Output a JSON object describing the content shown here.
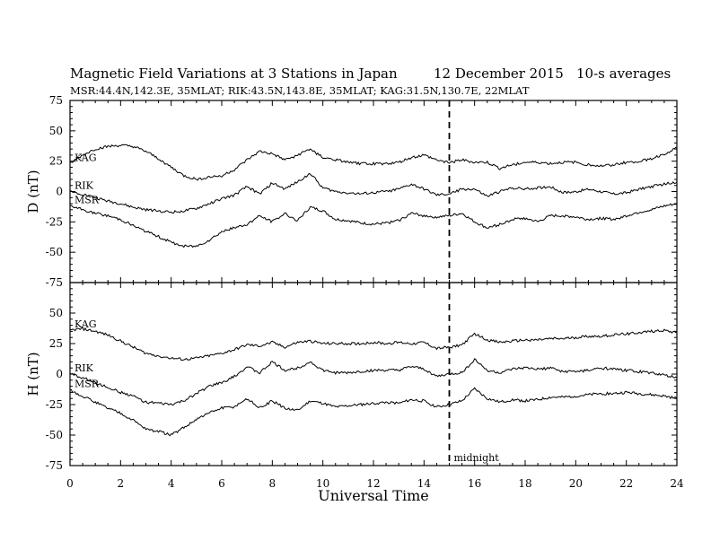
{
  "title": "Magnetic Field Variations at 3 Stations in Japan",
  "date": "12 December 2015",
  "averaging": "10-s averages",
  "stations_line": "MSR:44.4N,142.3E, 35MLAT;  RIK:43.5N,143.8E, 35MLAT;  KAG:31.5N,130.7E, 22MLAT",
  "chart_data": [
    {
      "type": "line",
      "ylabel": "D (nT)",
      "xlabel": "Universal Time",
      "xlim": [
        0,
        24
      ],
      "ylim": [
        -75,
        75
      ],
      "xticks": [
        0,
        2,
        4,
        6,
        8,
        10,
        12,
        14,
        16,
        18,
        20,
        22,
        24
      ],
      "yticks": [
        -75,
        -50,
        -25,
        0,
        25,
        50,
        75
      ],
      "x": [
        0,
        0.5,
        1,
        1.5,
        2,
        2.5,
        3,
        3.5,
        4,
        4.5,
        5,
        5.5,
        6,
        6.5,
        7,
        7.5,
        8,
        8.5,
        9,
        9.5,
        10,
        10.5,
        11,
        11.5,
        12,
        12.5,
        13,
        13.5,
        14,
        14.5,
        15,
        15.5,
        16,
        16.5,
        17,
        17.5,
        18,
        18.5,
        19,
        19.5,
        20,
        20.5,
        21,
        21.5,
        22,
        22.5,
        23,
        23.5,
        24
      ],
      "series": [
        {
          "name": "KAG",
          "values": [
            23,
            30,
            35,
            37,
            38,
            37,
            33,
            27,
            20,
            13,
            10,
            12,
            13,
            18,
            26,
            33,
            31,
            26,
            30,
            35,
            28,
            26,
            24,
            23,
            23,
            23,
            24,
            28,
            30,
            26,
            24,
            26,
            24,
            24,
            19,
            22,
            24,
            24,
            23,
            24,
            24,
            22,
            21,
            22,
            24,
            25,
            27,
            31,
            36
          ]
        },
        {
          "name": "RIK",
          "values": [
            0,
            -2,
            -5,
            -8,
            -10,
            -13,
            -15,
            -16,
            -17,
            -16,
            -14,
            -10,
            -6,
            -3,
            4,
            -2,
            7,
            2,
            8,
            15,
            3,
            0,
            -1,
            -2,
            -1,
            0,
            2,
            6,
            2,
            -3,
            -2,
            2,
            2,
            -4,
            0,
            3,
            2,
            3,
            4,
            -1,
            0,
            2,
            0,
            -2,
            -1,
            2,
            4,
            6,
            8
          ]
        },
        {
          "name": "MSR",
          "values": [
            -12,
            -15,
            -18,
            -20,
            -23,
            -28,
            -33,
            -37,
            -42,
            -45,
            -45,
            -40,
            -33,
            -30,
            -27,
            -20,
            -25,
            -18,
            -24,
            -13,
            -16,
            -23,
            -24,
            -26,
            -27,
            -26,
            -24,
            -18,
            -20,
            -21,
            -20,
            -18,
            -25,
            -30,
            -27,
            -23,
            -22,
            -25,
            -20,
            -20,
            -21,
            -23,
            -22,
            -23,
            -20,
            -17,
            -15,
            -12,
            -10
          ]
        }
      ]
    },
    {
      "type": "line",
      "ylabel": "H (nT)",
      "xlabel": "Universal Time",
      "xlim": [
        0,
        24
      ],
      "ylim": [
        -75,
        75
      ],
      "xticks": [
        0,
        2,
        4,
        6,
        8,
        10,
        12,
        14,
        16,
        18,
        20,
        22,
        24
      ],
      "yticks": [
        -75,
        -50,
        -25,
        0,
        25,
        50,
        75
      ],
      "x": [
        0,
        0.5,
        1,
        1.5,
        2,
        2.5,
        3,
        3.5,
        4,
        4.5,
        5,
        5.5,
        6,
        6.5,
        7,
        7.5,
        8,
        8.5,
        9,
        9.5,
        10,
        10.5,
        11,
        11.5,
        12,
        12.5,
        13,
        13.5,
        14,
        14.5,
        15,
        15.5,
        16,
        16.5,
        17,
        17.5,
        18,
        18.5,
        19,
        19.5,
        20,
        20.5,
        21,
        21.5,
        22,
        22.5,
        23,
        23.5,
        24
      ],
      "series": [
        {
          "name": "KAG",
          "values": [
            36,
            37,
            35,
            32,
            27,
            22,
            17,
            15,
            13,
            12,
            13,
            15,
            17,
            20,
            24,
            23,
            26,
            22,
            26,
            27,
            25,
            25,
            25,
            25,
            26,
            25,
            26,
            25,
            26,
            21,
            22,
            24,
            33,
            28,
            26,
            27,
            28,
            28,
            29,
            29,
            30,
            31,
            31,
            32,
            33,
            34,
            35,
            36,
            34
          ]
        },
        {
          "name": "RIK",
          "values": [
            0,
            -3,
            -7,
            -11,
            -15,
            -18,
            -23,
            -24,
            -25,
            -22,
            -16,
            -10,
            -7,
            -2,
            6,
            1,
            10,
            3,
            5,
            10,
            3,
            1,
            1,
            2,
            3,
            3,
            3,
            6,
            4,
            -2,
            0,
            1,
            12,
            3,
            1,
            4,
            5,
            4,
            5,
            2,
            2,
            3,
            5,
            4,
            3,
            2,
            1,
            -1,
            -3
          ]
        },
        {
          "name": "MSR",
          "values": [
            -13,
            -18,
            -23,
            -28,
            -32,
            -38,
            -45,
            -47,
            -50,
            -44,
            -37,
            -32,
            -28,
            -27,
            -20,
            -28,
            -22,
            -28,
            -30,
            -22,
            -24,
            -27,
            -26,
            -25,
            -24,
            -23,
            -24,
            -21,
            -22,
            -27,
            -25,
            -22,
            -12,
            -20,
            -23,
            -21,
            -22,
            -21,
            -19,
            -19,
            -18,
            -17,
            -16,
            -16,
            -15,
            -16,
            -17,
            -18,
            -20
          ]
        }
      ]
    }
  ],
  "annotations": {
    "marker_x": 15,
    "marker_label": "midnight"
  }
}
